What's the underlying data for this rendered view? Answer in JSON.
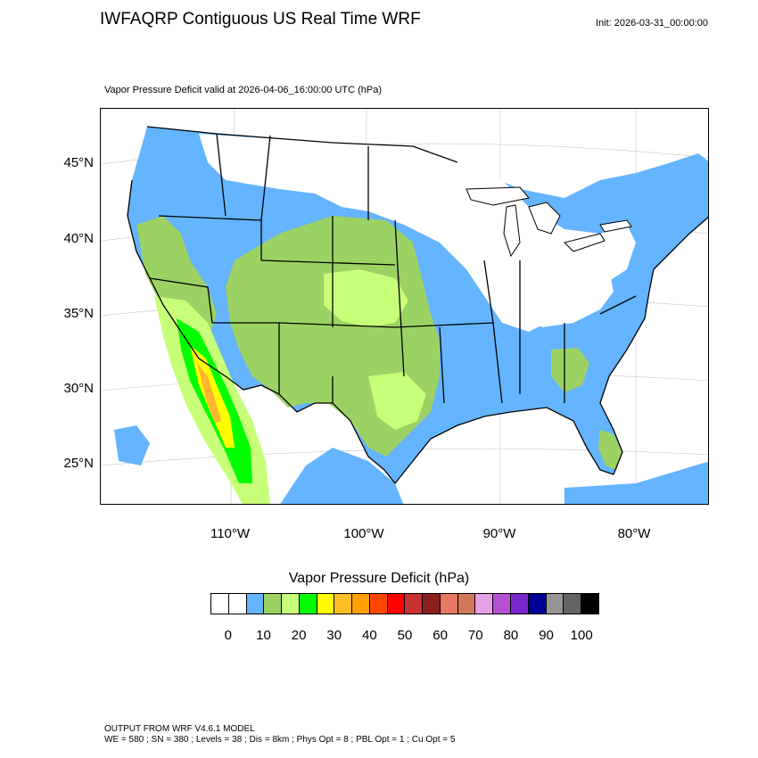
{
  "header": {
    "title": "IWFAQRP Contiguous US Real Time WRF",
    "init": "Init: 2026-03-31_00:00:00"
  },
  "plot": {
    "subtitle": "Vapor Pressure Deficit valid at 2026-04-06_16:00:00 UTC   (hPa)"
  },
  "map": {
    "region": "Contiguous United States",
    "lat_labels": [
      "45°N",
      "40°N",
      "35°N",
      "30°N",
      "25°N"
    ],
    "lon_labels": [
      "110°W",
      "100°W",
      "90°W",
      "80°W"
    ],
    "field_colors": {
      "ocean": "#ffffff",
      "light_blue": "#64b4ff",
      "olive_green": "#9cd264",
      "light_green": "#c8ff78",
      "bright_green": "#00ff00",
      "yellow": "#ffff00",
      "orange": "#ffb432"
    }
  },
  "colorbar": {
    "title": "Vapor Pressure Deficit  (hPa)",
    "colors": [
      "#ffffff",
      "#ffffff",
      "#64b4ff",
      "#9cd264",
      "#c8ff78",
      "#00ff00",
      "#ffff00",
      "#ffbe28",
      "#ffa000",
      "#ff4600",
      "#ff0000",
      "#c83232",
      "#8c1e1e",
      "#e67864",
      "#d2785a",
      "#e6a0e6",
      "#b450d2",
      "#7828c8",
      "#000096",
      "#969696",
      "#646464",
      "#000000"
    ],
    "tick_labels": [
      "0",
      "10",
      "20",
      "30",
      "40",
      "50",
      "60",
      "70",
      "80",
      "90",
      "100"
    ]
  },
  "footer": {
    "line1": "OUTPUT FROM WRF V4.6.1 MODEL",
    "line2": "WE = 580 ; SN = 380 ; Levels = 38 ; Dis = 8km ; Phys Opt = 8 ; PBL Opt = 1 ; Cu Opt = 5"
  }
}
